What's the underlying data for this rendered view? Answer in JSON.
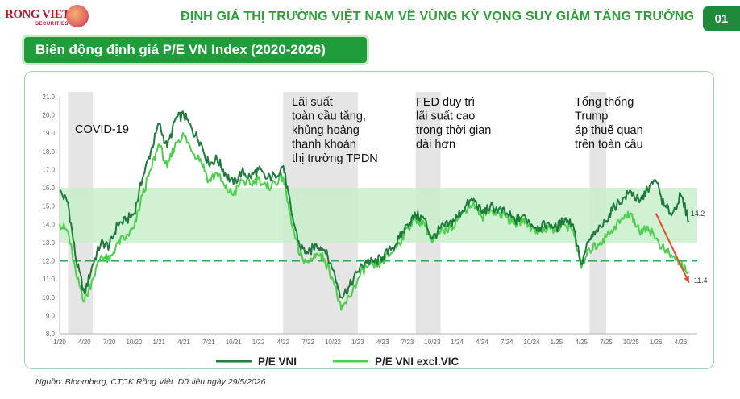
{
  "header": {
    "logo_text": "RONG VIET",
    "logo_sub": "SECURITIES",
    "title": "ĐỊNH GIÁ THỊ TRƯỜNG VIỆT NAM VỀ VÙNG KỲ VỌNG SUY GIẢM TĂNG TRƯỞNG",
    "page_number": "01"
  },
  "section_title": "Biến động định giá P/E VN Index (2020-2026)",
  "source_note": "Nguồn: Bloomberg, CTCK Rồng Việt. Dữ liệu ngày 29/5/2026",
  "colors": {
    "vni": "#1e7a3c",
    "vni_excl_vic": "#4ccf4c",
    "band": "#c9efcb",
    "shade": "#dcdcdc",
    "threshold": "#2fa84a",
    "arrow": "#e8492b",
    "title_green": "#2e9e3a"
  },
  "chart_data": {
    "type": "line",
    "ylim": [
      8.0,
      21.0
    ],
    "y_ticks": [
      "8.0",
      "9.0",
      "10.0",
      "11.0",
      "12.0",
      "13.0",
      "14.0",
      "15.0",
      "16.0",
      "17.0",
      "18.0",
      "19.0",
      "20.0",
      "21.0"
    ],
    "x_tick_labels": [
      "1/20",
      "4/20",
      "7/20",
      "10/20",
      "1/21",
      "4/21",
      "7/21",
      "10/21",
      "1/22",
      "4/22",
      "7/22",
      "10/22",
      "1/23",
      "4/23",
      "7/23",
      "10/23",
      "1/24",
      "4/24",
      "7/24",
      "10/24",
      "1/25",
      "4/25",
      "7/25",
      "10/25",
      "1/26",
      "4/26"
    ],
    "band": [
      13.0,
      16.0
    ],
    "threshold": 12.0,
    "shaded_periods": [
      {
        "start": "2/20",
        "end": "5/20",
        "label": "COVID-19"
      },
      {
        "start": "4/22",
        "end": "1/23",
        "label": "Lãi suất\ntoàn cầu tăng,\nkhủng hoảng\nthanh khoản\nthị trường TPDN"
      },
      {
        "start": "8/23",
        "end": "11/23",
        "label": "FED duy trì\nlãi suất cao\ntrong thời gian\ndài hơn"
      },
      {
        "start": "5/25",
        "end": "7/25",
        "label": "Tổng thống\nTrump\náp thuế quan\ntrên toàn cầu"
      }
    ],
    "end_labels": {
      "vni": "14.2",
      "vni_excl_vic": "11.4"
    },
    "series": [
      {
        "name": "P/E VNI",
        "points": [
          [
            "1/20",
            15.8
          ],
          [
            "2/20",
            15.2
          ],
          [
            "3/20",
            12.0
          ],
          [
            "4/20",
            10.2
          ],
          [
            "5/20",
            11.8
          ],
          [
            "6/20",
            13.0
          ],
          [
            "7/20",
            12.8
          ],
          [
            "8/20",
            14.0
          ],
          [
            "9/20",
            14.2
          ],
          [
            "10/20",
            14.6
          ],
          [
            "11/20",
            16.5
          ],
          [
            "12/20",
            18.0
          ],
          [
            "1/21",
            19.5
          ],
          [
            "2/21",
            18.2
          ],
          [
            "3/21",
            19.8
          ],
          [
            "4/21",
            20.0
          ],
          [
            "5/21",
            19.2
          ],
          [
            "6/21",
            18.5
          ],
          [
            "7/21",
            17.3
          ],
          [
            "8/21",
            17.6
          ],
          [
            "9/21",
            16.8
          ],
          [
            "10/21",
            16.2
          ],
          [
            "11/21",
            16.9
          ],
          [
            "12/21",
            16.6
          ],
          [
            "1/22",
            17.0
          ],
          [
            "2/22",
            16.5
          ],
          [
            "3/22",
            16.7
          ],
          [
            "4/22",
            17.2
          ],
          [
            "5/22",
            14.6
          ],
          [
            "6/22",
            12.8
          ],
          [
            "7/22",
            12.4
          ],
          [
            "8/22",
            12.9
          ],
          [
            "9/22",
            12.6
          ],
          [
            "10/22",
            11.5
          ],
          [
            "11/22",
            10.0
          ],
          [
            "12/22",
            10.6
          ],
          [
            "1/23",
            11.4
          ],
          [
            "2/23",
            12.0
          ],
          [
            "3/23",
            11.9
          ],
          [
            "4/23",
            12.2
          ],
          [
            "5/23",
            12.6
          ],
          [
            "6/23",
            13.2
          ],
          [
            "7/23",
            14.0
          ],
          [
            "8/23",
            14.5
          ],
          [
            "9/23",
            14.3
          ],
          [
            "10/23",
            13.2
          ],
          [
            "11/23",
            13.8
          ],
          [
            "12/23",
            14.0
          ],
          [
            "1/24",
            14.4
          ],
          [
            "2/24",
            15.0
          ],
          [
            "3/24",
            15.4
          ],
          [
            "4/24",
            14.6
          ],
          [
            "5/24",
            15.0
          ],
          [
            "6/24",
            14.8
          ],
          [
            "7/24",
            14.6
          ],
          [
            "8/24",
            14.2
          ],
          [
            "9/24",
            14.5
          ],
          [
            "10/24",
            14.0
          ],
          [
            "11/24",
            13.8
          ],
          [
            "12/24",
            14.1
          ],
          [
            "1/25",
            13.8
          ],
          [
            "2/25",
            14.3
          ],
          [
            "3/25",
            14.0
          ],
          [
            "4/25",
            11.8
          ],
          [
            "5/25",
            13.2
          ],
          [
            "6/25",
            13.6
          ],
          [
            "7/25",
            14.2
          ],
          [
            "8/25",
            15.0
          ],
          [
            "9/25",
            15.4
          ],
          [
            "10/25",
            15.8
          ],
          [
            "11/25",
            15.2
          ],
          [
            "12/25",
            15.9
          ],
          [
            "1/26",
            16.4
          ],
          [
            "2/26",
            15.0
          ],
          [
            "3/26",
            14.6
          ],
          [
            "4/26",
            15.6
          ],
          [
            "5/26",
            14.2
          ]
        ]
      },
      {
        "name": "P/E VNI excl.VIC",
        "points": [
          [
            "1/20",
            14.0
          ],
          [
            "2/20",
            13.6
          ],
          [
            "3/20",
            11.2
          ],
          [
            "4/20",
            9.8
          ],
          [
            "5/20",
            11.0
          ],
          [
            "6/20",
            12.3
          ],
          [
            "7/20",
            12.0
          ],
          [
            "8/20",
            13.0
          ],
          [
            "9/20",
            13.3
          ],
          [
            "10/20",
            13.8
          ],
          [
            "11/20",
            15.6
          ],
          [
            "12/20",
            17.0
          ],
          [
            "1/21",
            18.4
          ],
          [
            "2/21",
            17.1
          ],
          [
            "3/21",
            18.5
          ],
          [
            "4/21",
            18.9
          ],
          [
            "5/21",
            18.0
          ],
          [
            "6/21",
            17.6
          ],
          [
            "7/21",
            16.4
          ],
          [
            "8/21",
            16.8
          ],
          [
            "9/21",
            16.0
          ],
          [
            "10/21",
            15.6
          ],
          [
            "11/21",
            16.4
          ],
          [
            "12/21",
            16.2
          ],
          [
            "1/22",
            16.5
          ],
          [
            "2/22",
            16.0
          ],
          [
            "3/22",
            16.3
          ],
          [
            "4/22",
            16.6
          ],
          [
            "5/22",
            14.0
          ],
          [
            "6/22",
            12.3
          ],
          [
            "7/22",
            11.9
          ],
          [
            "8/22",
            12.4
          ],
          [
            "9/22",
            12.1
          ],
          [
            "10/22",
            11.0
          ],
          [
            "11/22",
            9.3
          ],
          [
            "12/22",
            10.0
          ],
          [
            "1/23",
            11.0
          ],
          [
            "2/23",
            11.7
          ],
          [
            "3/23",
            11.6
          ],
          [
            "4/23",
            12.0
          ],
          [
            "5/23",
            12.4
          ],
          [
            "6/23",
            13.0
          ],
          [
            "7/23",
            13.8
          ],
          [
            "8/23",
            14.3
          ],
          [
            "9/23",
            14.1
          ],
          [
            "10/23",
            13.0
          ],
          [
            "11/23",
            13.6
          ],
          [
            "12/23",
            13.8
          ],
          [
            "1/24",
            14.2
          ],
          [
            "2/24",
            14.8
          ],
          [
            "3/24",
            15.2
          ],
          [
            "4/24",
            14.4
          ],
          [
            "5/24",
            14.8
          ],
          [
            "6/24",
            14.6
          ],
          [
            "7/24",
            14.4
          ],
          [
            "8/24",
            14.0
          ],
          [
            "9/24",
            14.3
          ],
          [
            "10/24",
            13.8
          ],
          [
            "11/24",
            13.6
          ],
          [
            "12/24",
            13.9
          ],
          [
            "1/25",
            13.6
          ],
          [
            "2/25",
            14.0
          ],
          [
            "3/25",
            13.7
          ],
          [
            "4/25",
            11.6
          ],
          [
            "5/25",
            12.6
          ],
          [
            "6/25",
            12.9
          ],
          [
            "7/25",
            13.3
          ],
          [
            "8/25",
            13.9
          ],
          [
            "9/25",
            14.3
          ],
          [
            "10/25",
            14.6
          ],
          [
            "11/25",
            13.6
          ],
          [
            "12/25",
            13.9
          ],
          [
            "1/26",
            13.2
          ],
          [
            "2/26",
            12.6
          ],
          [
            "3/26",
            12.2
          ],
          [
            "4/26",
            11.8
          ],
          [
            "5/26",
            11.4
          ]
        ]
      }
    ],
    "trend_arrow": {
      "from": [
        "1/26",
        14.6
      ],
      "to": [
        "5/26",
        10.8
      ]
    }
  }
}
